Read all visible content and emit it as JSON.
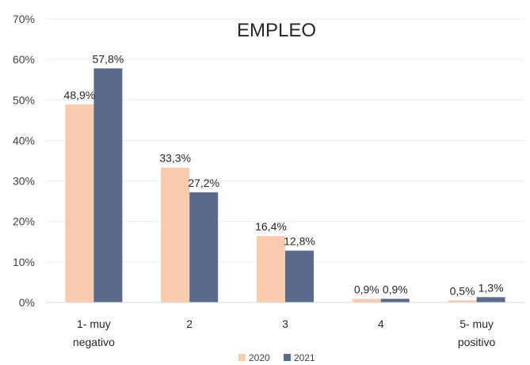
{
  "chart_data": {
    "type": "bar",
    "title": "EMPLEO",
    "categories": [
      [
        "1- muy",
        "negativo"
      ],
      [
        "2"
      ],
      [
        "3"
      ],
      [
        "4"
      ],
      [
        "5- muy",
        "positivo"
      ]
    ],
    "series": [
      {
        "name": "2020",
        "color": "#F8CBAD",
        "values": [
          48.9,
          33.3,
          16.4,
          0.9,
          0.5
        ],
        "labels": [
          "48,9%",
          "33,3%",
          "16,4%",
          "0,9%",
          "0,5%"
        ]
      },
      {
        "name": "2021",
        "color": "#5A6A8A",
        "values": [
          57.8,
          27.2,
          12.8,
          0.9,
          1.3
        ],
        "labels": [
          "57,8%",
          "27,2%",
          "12,8%",
          "0,9%",
          "1,3%"
        ]
      }
    ],
    "ylim": [
      0,
      70
    ],
    "yticks": [
      0,
      10,
      20,
      30,
      40,
      50,
      60,
      70
    ],
    "ytick_labels": [
      "0%",
      "10%",
      "20%",
      "30%",
      "40%",
      "50%",
      "60%",
      "70%"
    ],
    "grid": true,
    "legend_position": "bottom"
  }
}
